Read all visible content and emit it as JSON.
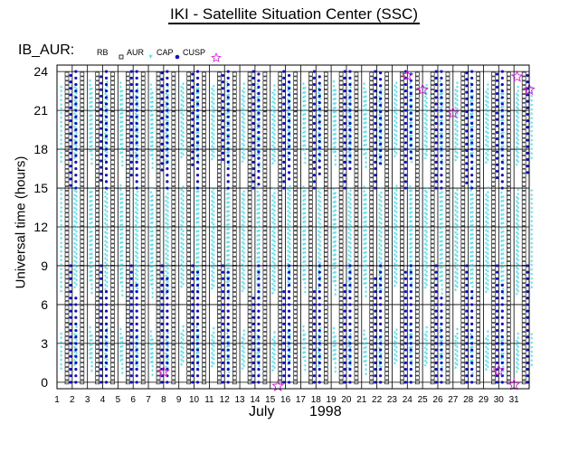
{
  "title": "IKI - Satellite Situation Center (SSC)",
  "legend": {
    "label": "IB_AUR:",
    "items": [
      {
        "name": "RB",
        "symbol": "open-square",
        "color": "#000000"
      },
      {
        "name": "AUR",
        "symbol": "asterisk",
        "color": "#20d0e0"
      },
      {
        "name": "CAP",
        "symbol": "filled-circle",
        "color": "#1010c0"
      },
      {
        "name": "CUSP",
        "symbol": "open-star",
        "color": "#d020d0"
      }
    ]
  },
  "axis": {
    "ylabel": "Universal time  (hours)",
    "xlabel_month": "July",
    "xlabel_year": "1998"
  },
  "chart_data": {
    "type": "scatter",
    "title": "IKI - Satellite Situation Center (SSC)",
    "ylabel": "Universal time  (hours)",
    "xlabel": "July 1998",
    "x_ticks": [
      1,
      2,
      3,
      4,
      5,
      6,
      7,
      8,
      9,
      10,
      11,
      12,
      13,
      14,
      15,
      16,
      17,
      18,
      19,
      20,
      21,
      22,
      23,
      24,
      25,
      26,
      27,
      28,
      29,
      30,
      31
    ],
    "xlim": [
      1,
      32
    ],
    "y_ticks": [
      0,
      3,
      6,
      9,
      12,
      15,
      18,
      21,
      24
    ],
    "ylim": [
      -0.5,
      24.5
    ],
    "grid": true,
    "series": [
      {
        "name": "RB",
        "symbol": "open-square",
        "color": "#000000",
        "points": "Continuous column of markers at every ~0.33 h (0 to 24 UT) at the left edge of each day, days 1-31"
      },
      {
        "name": "AUR",
        "symbol": "asterisk",
        "color": "#20d0e0",
        "orbit_passes_per_day": 2,
        "blocks_ut_hours": [
          [
            0.5,
            3.5
          ],
          [
            6.5,
            14.5
          ],
          [
            16.5,
            22.5
          ]
        ]
      },
      {
        "name": "CAP",
        "symbol": "filled-circle",
        "color": "#1010c0",
        "typical_blocks_ut_hours": [
          [
            0,
            9
          ],
          [
            15,
            24
          ]
        ]
      },
      {
        "name": "CUSP",
        "symbol": "open-star",
        "color": "#d020d0",
        "points": [
          [
            8,
            0.8
          ],
          [
            15.5,
            -0.3
          ],
          [
            24,
            23.7
          ],
          [
            25,
            22.6
          ],
          [
            27,
            20.8
          ],
          [
            30,
            0.9
          ],
          [
            31,
            -0.2
          ],
          [
            31.2,
            23.6
          ],
          [
            32,
            22.6
          ]
        ]
      }
    ]
  }
}
